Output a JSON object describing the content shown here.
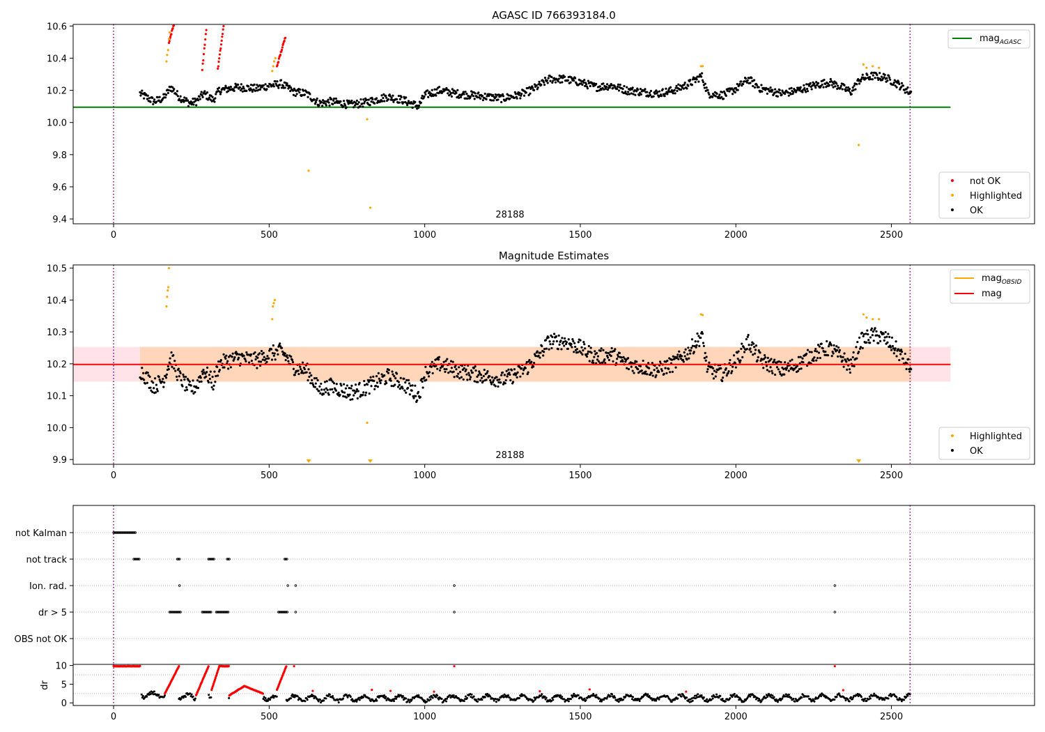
{
  "chart_data": [
    {
      "type": "scatter",
      "title": "AGASC ID 766393184.0",
      "annotation": "28188",
      "xlim": [
        -130,
        2960
      ],
      "ylim": [
        9.37,
        10.61
      ],
      "x_ticks": [
        0,
        500,
        1000,
        1500,
        2000,
        2500
      ],
      "y_ticks": [
        9.4,
        9.6,
        9.8,
        10.0,
        10.2,
        10.4,
        10.6
      ],
      "vlines": [
        0,
        2560
      ],
      "reference_line": {
        "name": "mag",
        "subscript": "AGASC",
        "y": 10.095,
        "x_range": [
          -130,
          2690
        ],
        "color": "#008000"
      },
      "legend_top": [
        {
          "label": "mag",
          "subscript": "AGASC",
          "color": "#008000"
        }
      ],
      "legend_bottom": [
        {
          "label": "not OK",
          "color": "#ff0000"
        },
        {
          "label": "Highlighted",
          "color": "#ffa500"
        },
        {
          "label": "OK",
          "color": "#000000"
        }
      ],
      "series": [
        {
          "name": "OK",
          "color": "#000000",
          "envelope": [
            [
              85,
              10.18
            ],
            [
              130,
              10.13
            ],
            [
              160,
              10.15
            ],
            [
              185,
              10.22
            ],
            [
              210,
              10.16
            ],
            [
              245,
              10.12
            ],
            [
              265,
              10.13
            ],
            [
              290,
              10.18
            ],
            [
              320,
              10.14
            ],
            [
              340,
              10.2
            ],
            [
              400,
              10.22
            ],
            [
              460,
              10.21
            ],
            [
              500,
              10.23
            ],
            [
              540,
              10.24
            ],
            [
              580,
              10.19
            ],
            [
              620,
              10.18
            ],
            [
              660,
              10.12
            ],
            [
              700,
              10.13
            ],
            [
              760,
              10.11
            ],
            [
              800,
              10.12
            ],
            [
              840,
              10.14
            ],
            [
              880,
              10.16
            ],
            [
              930,
              10.14
            ],
            [
              980,
              10.1
            ],
            [
              1000,
              10.17
            ],
            [
              1050,
              10.2
            ],
            [
              1100,
              10.18
            ],
            [
              1150,
              10.17
            ],
            [
              1200,
              10.16
            ],
            [
              1250,
              10.15
            ],
            [
              1300,
              10.17
            ],
            [
              1330,
              10.19
            ],
            [
              1360,
              10.22
            ],
            [
              1400,
              10.27
            ],
            [
              1450,
              10.27
            ],
            [
              1500,
              10.25
            ],
            [
              1550,
              10.22
            ],
            [
              1600,
              10.23
            ],
            [
              1650,
              10.2
            ],
            [
              1700,
              10.19
            ],
            [
              1750,
              10.18
            ],
            [
              1800,
              10.2
            ],
            [
              1850,
              10.24
            ],
            [
              1890,
              10.29
            ],
            [
              1910,
              10.18
            ],
            [
              1960,
              10.17
            ],
            [
              2000,
              10.21
            ],
            [
              2040,
              10.27
            ],
            [
              2080,
              10.21
            ],
            [
              2150,
              10.18
            ],
            [
              2200,
              10.2
            ],
            [
              2250,
              10.23
            ],
            [
              2300,
              10.25
            ],
            [
              2340,
              10.22
            ],
            [
              2370,
              10.19
            ],
            [
              2400,
              10.27
            ],
            [
              2440,
              10.29
            ],
            [
              2480,
              10.28
            ],
            [
              2520,
              10.24
            ],
            [
              2565,
              10.18
            ]
          ],
          "noise": 0.025
        },
        {
          "name": "not OK",
          "color": "#ff0000",
          "segments": [
            [
              [
                178,
                10.5
              ],
              [
                195,
                10.62
              ]
            ],
            [
              [
                285,
                10.33
              ],
              [
                298,
                10.58
              ]
            ],
            [
              [
                335,
                10.33
              ],
              [
                355,
                10.62
              ]
            ],
            [
              [
                525,
                10.35
              ],
              [
                552,
                10.53
              ]
            ]
          ]
        },
        {
          "name": "Highlighted",
          "color": "#ffa500",
          "points": [
            [
              170,
              10.38
            ],
            [
              172,
              10.42
            ],
            [
              175,
              10.45
            ],
            [
              178,
              10.52
            ],
            [
              180,
              10.56
            ],
            [
              510,
              10.32
            ],
            [
              513,
              10.35
            ],
            [
              516,
              10.38
            ],
            [
              520,
              10.4
            ],
            [
              627,
              9.7
            ],
            [
              815,
              10.02
            ],
            [
              825,
              9.47
            ],
            [
              1888,
              10.35
            ],
            [
              1893,
              10.35
            ],
            [
              2395,
              9.86
            ],
            [
              2410,
              10.36
            ],
            [
              2420,
              10.34
            ],
            [
              2440,
              10.35
            ],
            [
              2460,
              10.34
            ]
          ]
        }
      ]
    },
    {
      "type": "scatter",
      "title": "Magnitude Estimates",
      "annotation": "28188",
      "xlim": [
        -130,
        2960
      ],
      "ylim": [
        9.885,
        10.51
      ],
      "x_ticks": [
        0,
        500,
        1000,
        1500,
        2000,
        2500
      ],
      "y_ticks": [
        9.9,
        10.0,
        10.1,
        10.2,
        10.3,
        10.4,
        10.5
      ],
      "vlines": [
        0,
        2560
      ],
      "mean_line": {
        "name": "mag",
        "y": 10.198,
        "x_range": [
          -130,
          2690
        ],
        "color": "#ff0000"
      },
      "band": {
        "y_range": [
          10.144,
          10.253
        ],
        "x_range": [
          -130,
          2690
        ]
      },
      "obsid_band": {
        "y_range": [
          10.144,
          10.253
        ],
        "x_range": [
          85,
          2565
        ]
      },
      "legend_top": [
        {
          "label": "mag",
          "subscript": "OBSID",
          "color": "#ffa500"
        },
        {
          "label": "mag",
          "color": "#ff0000"
        }
      ],
      "legend_bottom": [
        {
          "label": "Highlighted",
          "color": "#ffa500"
        },
        {
          "label": "OK",
          "color": "#000000"
        }
      ],
      "series": [
        {
          "name": "OK",
          "color": "#000000",
          "envelope": [
            [
              85,
              10.18
            ],
            [
              130,
              10.13
            ],
            [
              160,
              10.15
            ],
            [
              185,
              10.22
            ],
            [
              210,
              10.16
            ],
            [
              245,
              10.12
            ],
            [
              265,
              10.13
            ],
            [
              290,
              10.18
            ],
            [
              320,
              10.14
            ],
            [
              340,
              10.2
            ],
            [
              400,
              10.22
            ],
            [
              460,
              10.21
            ],
            [
              500,
              10.23
            ],
            [
              540,
              10.24
            ],
            [
              580,
              10.19
            ],
            [
              620,
              10.18
            ],
            [
              660,
              10.12
            ],
            [
              700,
              10.13
            ],
            [
              760,
              10.11
            ],
            [
              800,
              10.12
            ],
            [
              840,
              10.14
            ],
            [
              880,
              10.16
            ],
            [
              930,
              10.14
            ],
            [
              980,
              10.1
            ],
            [
              1000,
              10.17
            ],
            [
              1050,
              10.2
            ],
            [
              1100,
              10.18
            ],
            [
              1150,
              10.17
            ],
            [
              1200,
              10.16
            ],
            [
              1250,
              10.15
            ],
            [
              1300,
              10.17
            ],
            [
              1330,
              10.19
            ],
            [
              1360,
              10.22
            ],
            [
              1400,
              10.27
            ],
            [
              1450,
              10.27
            ],
            [
              1500,
              10.25
            ],
            [
              1550,
              10.22
            ],
            [
              1600,
              10.23
            ],
            [
              1650,
              10.2
            ],
            [
              1700,
              10.19
            ],
            [
              1750,
              10.18
            ],
            [
              1800,
              10.2
            ],
            [
              1850,
              10.24
            ],
            [
              1890,
              10.29
            ],
            [
              1910,
              10.18
            ],
            [
              1960,
              10.17
            ],
            [
              2000,
              10.21
            ],
            [
              2040,
              10.27
            ],
            [
              2080,
              10.21
            ],
            [
              2150,
              10.18
            ],
            [
              2200,
              10.2
            ],
            [
              2250,
              10.23
            ],
            [
              2300,
              10.25
            ],
            [
              2340,
              10.22
            ],
            [
              2370,
              10.19
            ],
            [
              2400,
              10.27
            ],
            [
              2440,
              10.29
            ],
            [
              2480,
              10.28
            ],
            [
              2520,
              10.24
            ],
            [
              2565,
              10.18
            ]
          ],
          "noise": 0.025
        },
        {
          "name": "Highlighted",
          "color": "#ffa500",
          "points": [
            [
              170,
              10.38
            ],
            [
              172,
              10.41
            ],
            [
              174,
              10.43
            ],
            [
              176,
              10.44
            ],
            [
              178,
              10.5
            ],
            [
              510,
              10.34
            ],
            [
              512,
              10.38
            ],
            [
              515,
              10.39
            ],
            [
              518,
              10.4
            ],
            [
              815,
              10.015
            ],
            [
              1888,
              10.355
            ],
            [
              1893,
              10.353
            ],
            [
              2410,
              10.355
            ],
            [
              2420,
              10.345
            ],
            [
              2440,
              10.34
            ],
            [
              2460,
              10.34
            ]
          ]
        },
        {
          "name": "Highlighted (off-scale)",
          "color": "#ffa500",
          "markers": [
            627,
            825,
            2395
          ]
        }
      ]
    },
    {
      "type": "scatter",
      "xlim": [
        -130,
        2960
      ],
      "vlines": [
        0,
        2560
      ],
      "categories": [
        "not Kalman",
        "not track",
        "Ion. rad.",
        "dr > 5",
        "OBS not OK"
      ],
      "flags": [
        {
          "category": "not Kalman",
          "ranges": [
            [
              0,
              70
            ]
          ]
        },
        {
          "category": "not track",
          "ranges": [
            [
              65,
              85
            ],
            [
              205,
              215
            ],
            [
              305,
              325
            ],
            [
              365,
              375
            ],
            [
              550,
              560
            ]
          ]
        },
        {
          "category": "Ion. rad.",
          "points": [
            212,
            560,
            585,
            1095,
            2318
          ]
        },
        {
          "category": "dr > 5",
          "ranges": [
            [
              180,
              215
            ],
            [
              285,
              315
            ],
            [
              330,
              370
            ],
            [
              530,
              560
            ]
          ],
          "points": [
            585,
            1095,
            2318
          ]
        },
        {
          "category": "OBS not OK",
          "ranges": []
        }
      ]
    },
    {
      "type": "scatter",
      "ylabel": "dr",
      "xlim": [
        -130,
        2960
      ],
      "ylim": [
        -0.7,
        10.3
      ],
      "x_ticks": [
        0,
        500,
        1000,
        1500,
        2000,
        2500
      ],
      "y_ticks": [
        0,
        5,
        10
      ],
      "vlines": [
        0,
        2560
      ],
      "series": [
        {
          "name": "dr",
          "color": "#000000",
          "noise": 0.9,
          "envelope": [
            [
              90,
              2.2
            ],
            [
              200,
              1.8
            ],
            [
              260,
              1.5
            ],
            [
              400,
              1.6
            ],
            [
              600,
              1.2
            ],
            [
              1000,
              1.2
            ],
            [
              1500,
              1.4
            ],
            [
              2000,
              1.3
            ],
            [
              2560,
              1.5
            ]
          ]
        },
        {
          "name": "dr > 5",
          "color": "#ff0000",
          "segments": [
            [
              [
                0,
                9.8
              ],
              [
                85,
                9.8
              ]
            ],
            [
              [
                165,
                2.5
              ],
              [
                210,
                9.8
              ]
            ],
            [
              [
                265,
                2.0
              ],
              [
                305,
                9.8
              ]
            ],
            [
              [
                315,
                3.5
              ],
              [
                340,
                9.8
              ]
            ],
            [
              [
                340,
                9.8
              ],
              [
                370,
                9.8
              ]
            ],
            [
              [
                372,
                2.0
              ],
              [
                420,
                4.5
              ]
            ],
            [
              [
                420,
                4.5
              ],
              [
                480,
                2.5
              ]
            ],
            [
              [
                525,
                3.5
              ],
              [
                555,
                9.8
              ]
            ]
          ],
          "points": [
            [
              580,
              9.8
            ],
            [
              1095,
              9.8
            ],
            [
              2318,
              9.8
            ],
            [
              830,
              3.5
            ],
            [
              890,
              3.2
            ],
            [
              1530,
              3.6
            ],
            [
              2345,
              3.4
            ],
            [
              1370,
              3.1
            ],
            [
              1030,
              3.0
            ],
            [
              1840,
              3.0
            ],
            [
              640,
              3.2
            ]
          ]
        }
      ]
    }
  ]
}
